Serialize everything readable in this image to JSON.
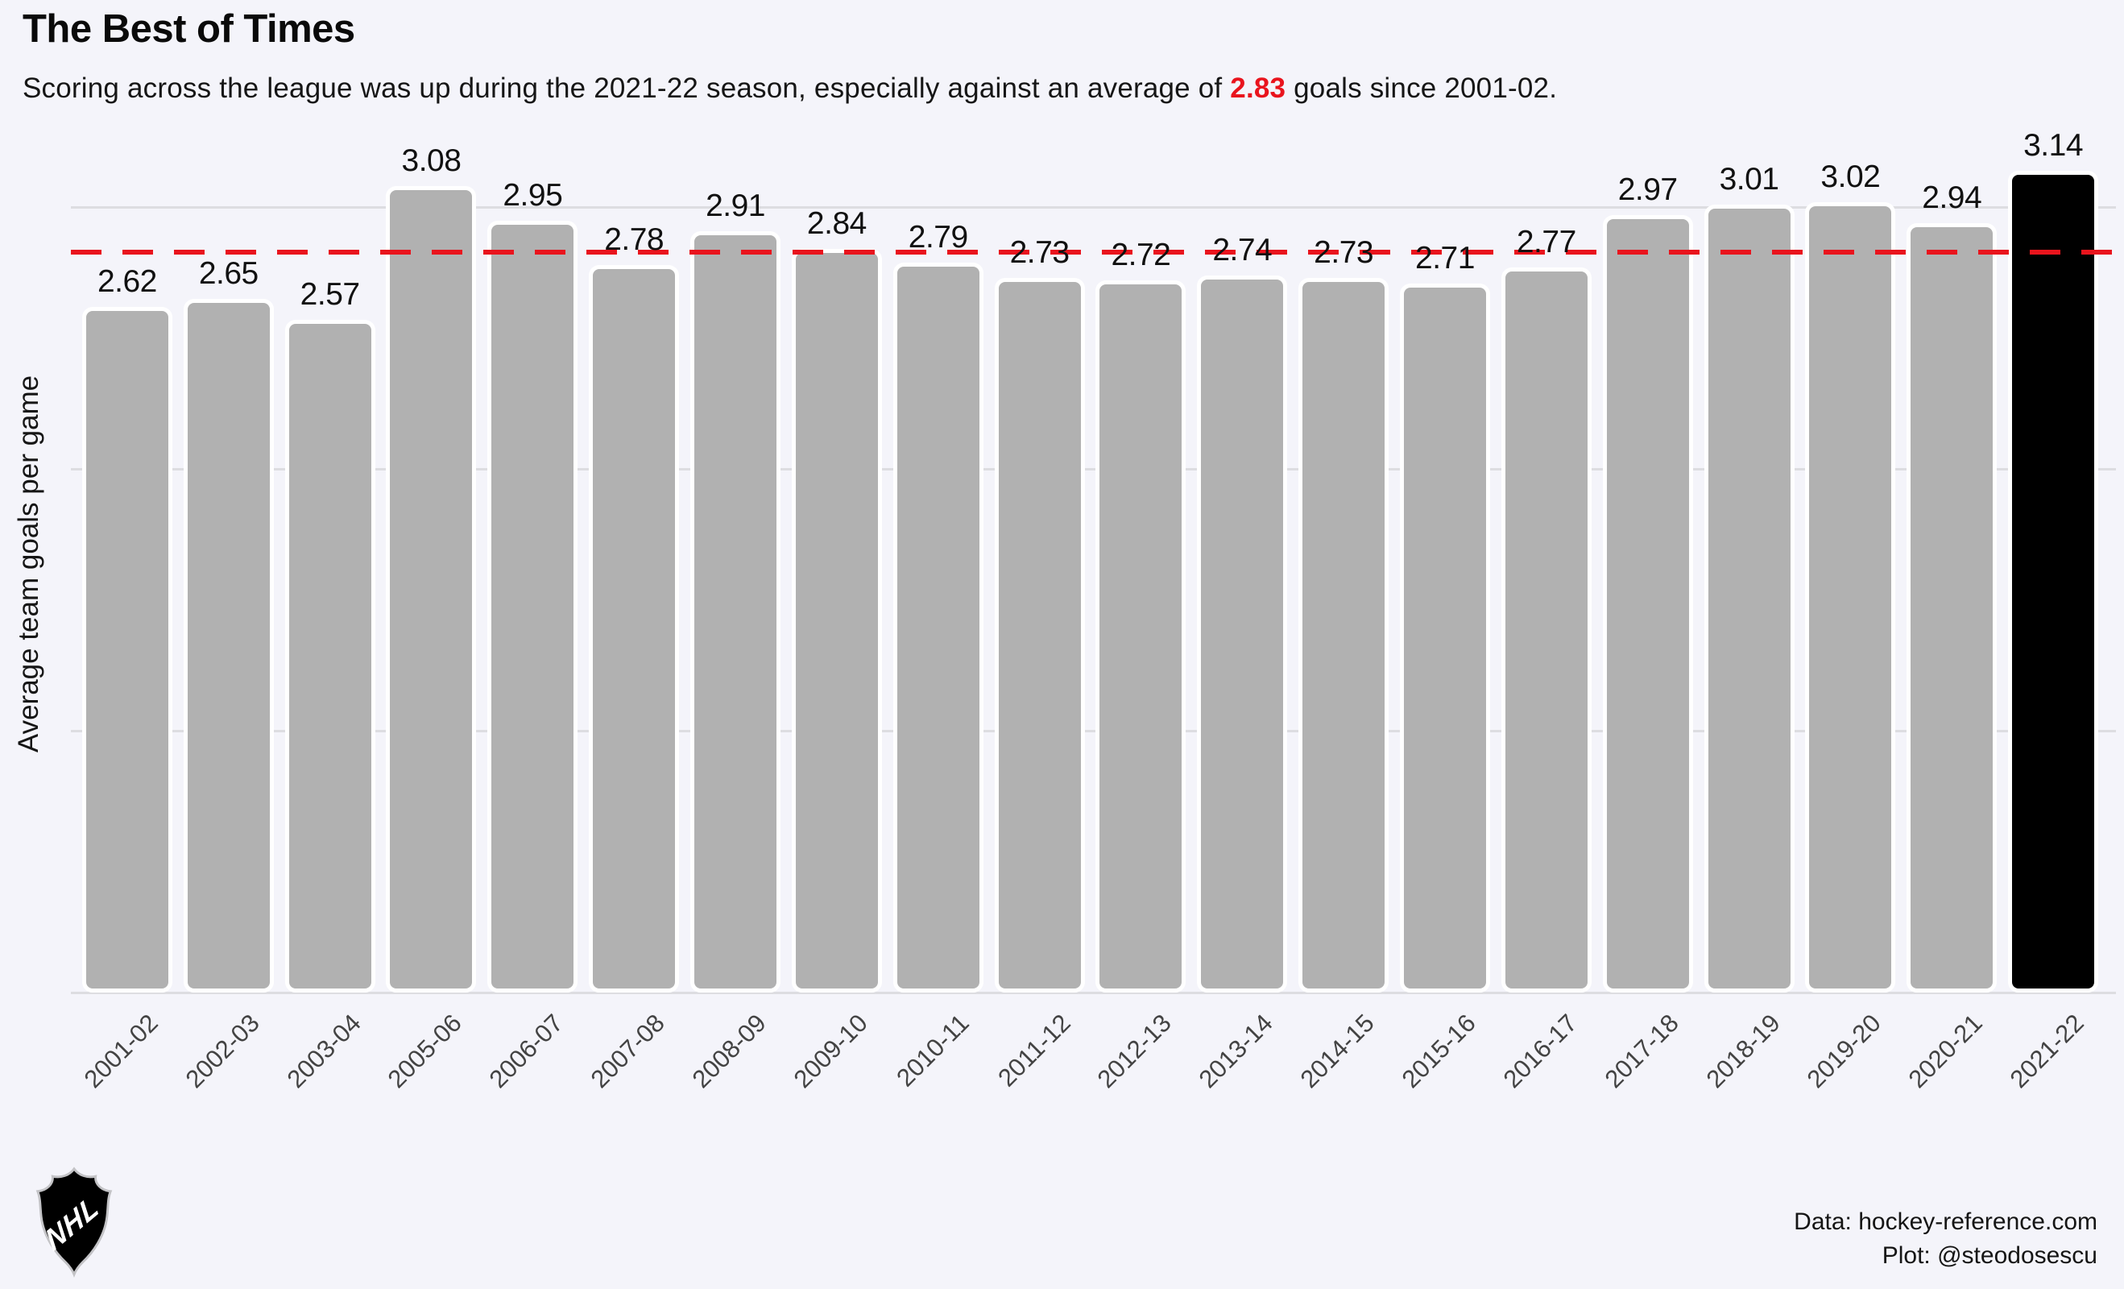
{
  "title": "The Best of Times",
  "subtitle": {
    "pre": "Scoring across the league was up during the 2021-22 season, especially against an average of ",
    "highlight": "2.83",
    "post": " goals since 2001-02."
  },
  "chart_data": {
    "type": "bar",
    "title": "The Best of Times",
    "subtitle": "Scoring across the league was up during the 2021-22 season, especially against an average of 2.83 goals since 2001-02.",
    "categories": [
      "2001-02",
      "2002-03",
      "2003-04",
      "2005-06",
      "2006-07",
      "2007-08",
      "2008-09",
      "2009-10",
      "2010-11",
      "2011-12",
      "2012-13",
      "2013-14",
      "2014-15",
      "2015-16",
      "2016-17",
      "2017-18",
      "2018-19",
      "2019-20",
      "2020-21",
      "2021-22"
    ],
    "values": [
      2.62,
      2.65,
      2.57,
      3.08,
      2.95,
      2.78,
      2.91,
      2.84,
      2.79,
      2.73,
      2.72,
      2.74,
      2.73,
      2.71,
      2.77,
      2.97,
      3.01,
      3.02,
      2.94,
      3.14
    ],
    "value_labels": [
      "2.62",
      "2.65",
      "2.57",
      "3.08",
      "2.95",
      "2.78",
      "2.91",
      "2.84",
      "2.79",
      "2.73",
      "2.72",
      "2.74",
      "2.73",
      "2.71",
      "2.77",
      "2.97",
      "3.01",
      "3.02",
      "2.94",
      "3.14"
    ],
    "highlight_index": 19,
    "reference_line": 2.83,
    "xlabel": "",
    "ylabel": "Average team goals per game",
    "ylim": [
      0,
      3.3
    ],
    "gridlines": [
      0,
      1,
      2,
      3
    ],
    "grid": true,
    "legend_position": "none",
    "bar_color": "#b1b1b1",
    "highlight_color": "#000000",
    "reference_color": "#e9141d",
    "background_color": "#f4f4fa"
  },
  "footer": {
    "logo": "nhl-shield-logo",
    "credit_line1": "Data: hockey-reference.com",
    "credit_line2": "Plot: @steodosescu"
  }
}
